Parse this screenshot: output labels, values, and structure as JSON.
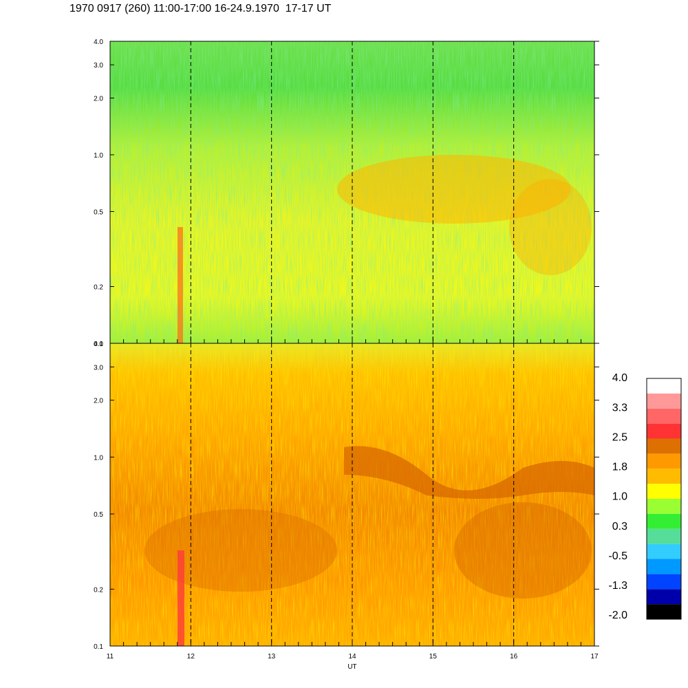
{
  "title": "1970 0917 (260) 11:00-17:00 16-24.9.1970  17-17 UT",
  "chart_data": [
    {
      "type": "heatmap",
      "panel": "top",
      "x_range": [
        11,
        17
      ],
      "x_ticks": [
        "11",
        "12",
        "13",
        "14",
        "15",
        "16",
        "17"
      ],
      "y_scale": "log",
      "y_range": [
        0.1,
        4.0
      ],
      "y_ticks": [
        {
          "value": 0.1,
          "label": "0.1"
        },
        {
          "value": 0.2,
          "label": "0.2"
        },
        {
          "value": 0.5,
          "label": "0.5"
        },
        {
          "value": 1.0,
          "label": "1.0"
        },
        {
          "value": 2.0,
          "label": "2.0"
        },
        {
          "value": 3.0,
          "label": "3.0"
        },
        {
          "value": 4.0,
          "label": "4.0"
        }
      ],
      "hour_markers": [
        12,
        13,
        14,
        15,
        16
      ],
      "dominant_levels": "green to yellow (0.3 to 1.0), orange patches (1.8) near 0.5–0.9 after 14 UT"
    },
    {
      "type": "heatmap",
      "panel": "bottom",
      "x_range": [
        11,
        17
      ],
      "x_ticks": [
        "11",
        "12",
        "13",
        "14",
        "15",
        "16",
        "17"
      ],
      "xlabel": "UT",
      "y_scale": "log",
      "y_range": [
        0.1,
        4.0
      ],
      "y_ticks": [
        {
          "value": 0.1,
          "label": "0.1"
        },
        {
          "value": 0.2,
          "label": "0.2"
        },
        {
          "value": 0.5,
          "label": "0.5"
        },
        {
          "value": 1.0,
          "label": "1.0"
        },
        {
          "value": 2.0,
          "label": "2.0"
        },
        {
          "value": 3.0,
          "label": "3.0"
        },
        {
          "value": 4.0,
          "label": "4.0"
        }
      ],
      "hour_markers": [
        12,
        13,
        14,
        15,
        16
      ],
      "dominant_levels": "orange (1.8 to 2.5), dark orange band near 1.0 after 14 UT, red streak near 11.9 UT"
    }
  ],
  "colorbar": {
    "labels": [
      "4.0",
      "3.3",
      "2.5",
      "1.8",
      "1.0",
      "0.3",
      "-0.5",
      "-1.3",
      "-2.0"
    ],
    "colors": [
      "#000000",
      "#0000aa",
      "#0044ff",
      "#0099ff",
      "#33ccff",
      "#55dd99",
      "#33ee33",
      "#99ff33",
      "#ffff00",
      "#ffbb00",
      "#ff9900",
      "#dd7000",
      "#ff3333",
      "#ff6666",
      "#ff9999",
      "#ffffff"
    ]
  }
}
